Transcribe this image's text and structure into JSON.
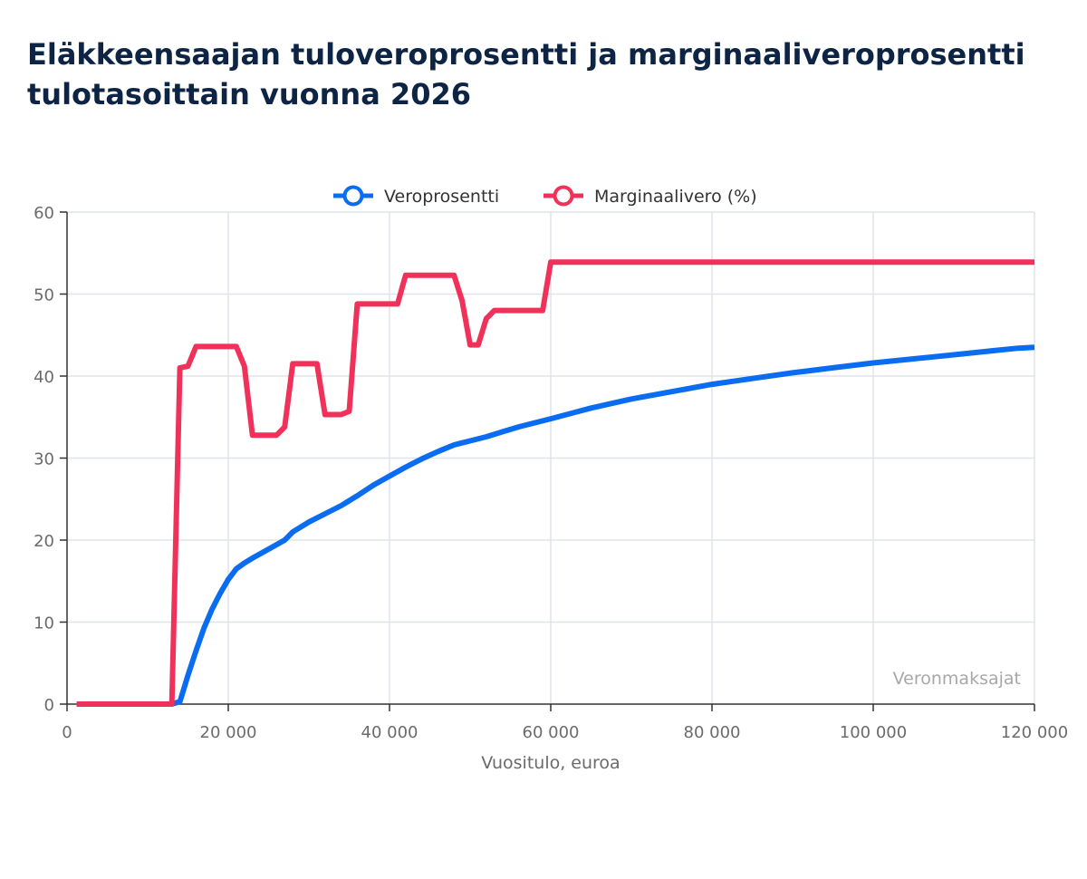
{
  "header": {
    "title_line1": "Eläkkeensaajan tuloveroprosentti ja marginaaliveroprosentti",
    "title_line2": "tulotasoittain vuonna 2026"
  },
  "credit": "Veronmaksajat",
  "chart_data": {
    "type": "line",
    "xlabel": "Vuositulo, euroa",
    "ylabel": "",
    "xlim": [
      0,
      120000
    ],
    "ylim": [
      0,
      60
    ],
    "x_ticks": [
      0,
      20000,
      40000,
      60000,
      80000,
      100000,
      120000
    ],
    "x_tick_labels": [
      "0",
      "20 000",
      "40 000",
      "60 000",
      "80 000",
      "100 000",
      "120 000"
    ],
    "y_ticks": [
      0,
      10,
      20,
      30,
      40,
      50,
      60
    ],
    "y_tick_labels": [
      "0",
      "10",
      "20",
      "30",
      "40",
      "50",
      "60"
    ],
    "grid": true,
    "legend_position": "top-center",
    "series": [
      {
        "name": "Veroprosentti",
        "color": "#0a6cf0",
        "points": [
          [
            1200,
            0
          ],
          [
            13000,
            0
          ],
          [
            14000,
            0.3
          ],
          [
            15000,
            3.5
          ],
          [
            16000,
            6.5
          ],
          [
            17000,
            9.3
          ],
          [
            18000,
            11.6
          ],
          [
            19000,
            13.5
          ],
          [
            20000,
            15.2
          ],
          [
            21000,
            16.5
          ],
          [
            22000,
            17.2
          ],
          [
            23000,
            17.8
          ],
          [
            25000,
            18.9
          ],
          [
            27000,
            20
          ],
          [
            28000,
            21
          ],
          [
            30000,
            22.2
          ],
          [
            32000,
            23.2
          ],
          [
            34000,
            24.2
          ],
          [
            36000,
            25.4
          ],
          [
            38000,
            26.7
          ],
          [
            40000,
            27.8
          ],
          [
            42000,
            28.9
          ],
          [
            44000,
            29.9
          ],
          [
            46000,
            30.8
          ],
          [
            48000,
            31.6
          ],
          [
            50000,
            32.1
          ],
          [
            52000,
            32.6
          ],
          [
            54000,
            33.2
          ],
          [
            56000,
            33.8
          ],
          [
            58000,
            34.3
          ],
          [
            60000,
            34.8
          ],
          [
            65000,
            36.1
          ],
          [
            70000,
            37.2
          ],
          [
            75000,
            38.1
          ],
          [
            80000,
            39
          ],
          [
            85000,
            39.7
          ],
          [
            90000,
            40.4
          ],
          [
            95000,
            41
          ],
          [
            100000,
            41.6
          ],
          [
            105000,
            42.1
          ],
          [
            110000,
            42.6
          ],
          [
            115000,
            43.1
          ],
          [
            118000,
            43.4
          ],
          [
            120000,
            43.5
          ]
        ]
      },
      {
        "name": "Marginaalivero (%)",
        "color": "#f0325a",
        "points": [
          [
            1200,
            0
          ],
          [
            13000,
            0
          ],
          [
            14000,
            41
          ],
          [
            15000,
            41.2
          ],
          [
            16000,
            43.6
          ],
          [
            17000,
            43.6
          ],
          [
            20000,
            43.6
          ],
          [
            21000,
            43.6
          ],
          [
            22000,
            41.2
          ],
          [
            23000,
            32.8
          ],
          [
            26000,
            32.8
          ],
          [
            27000,
            33.8
          ],
          [
            28000,
            41.5
          ],
          [
            31000,
            41.5
          ],
          [
            32000,
            35.3
          ],
          [
            34000,
            35.3
          ],
          [
            35000,
            35.7
          ],
          [
            36000,
            48.8
          ],
          [
            38000,
            48.8
          ],
          [
            40000,
            48.8
          ],
          [
            41000,
            48.8
          ],
          [
            42000,
            52.3
          ],
          [
            47000,
            52.3
          ],
          [
            48000,
            52.3
          ],
          [
            49000,
            49.2
          ],
          [
            50000,
            43.8
          ],
          [
            51000,
            43.8
          ],
          [
            52000,
            47
          ],
          [
            53000,
            48
          ],
          [
            59000,
            48
          ],
          [
            60000,
            53.9
          ],
          [
            120000,
            53.9
          ]
        ]
      }
    ]
  }
}
